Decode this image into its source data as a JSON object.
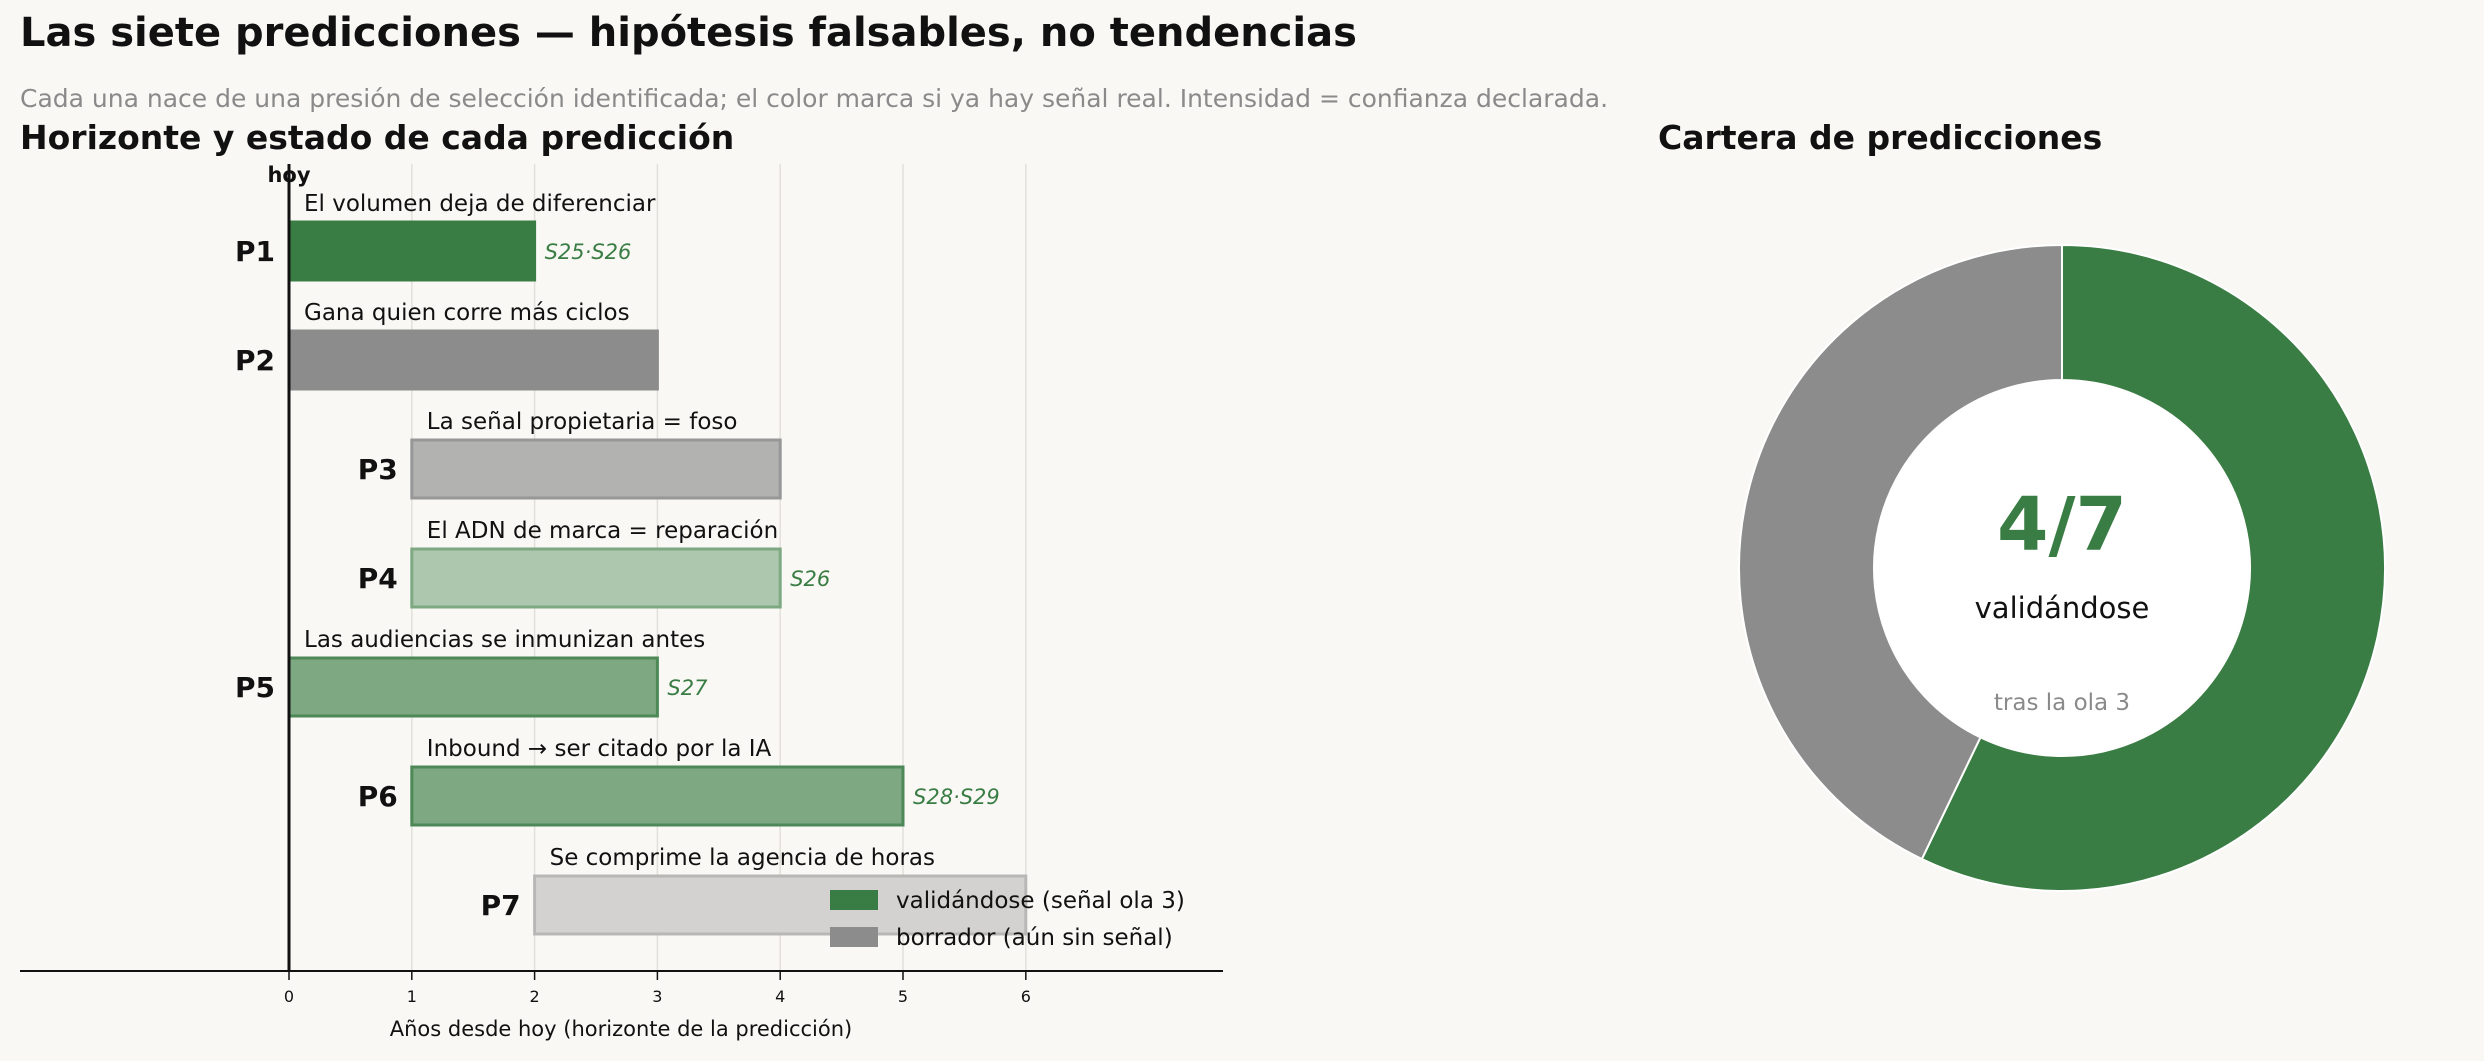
{
  "header": {
    "title": "Las siete predicciones — hipótesis falsables, no tendencias",
    "subtitle": "Cada una nace de una presión de selección identificada; el color marca si ya hay señal real. Intensidad = confianza declarada."
  },
  "colors": {
    "validating": "#3a7d44",
    "draft": "#8c8c8c",
    "axis": "#111111",
    "grid": "#e2e0da",
    "muted": "#8a8a8a"
  },
  "chart_data": [
    {
      "type": "bar",
      "orientation": "horizontal",
      "title": "Horizonte y estado de cada predicción",
      "xlabel": "Años desde hoy (horizonte de la predicción)",
      "xlim": [
        -2.2,
        7.6
      ],
      "xticks": [
        0,
        1,
        2,
        3,
        4,
        5,
        6
      ],
      "grid": true,
      "today_marker": {
        "x": 0,
        "label": "hoy"
      },
      "legend": {
        "placement": "lower-right",
        "entries": [
          {
            "label": "validándose (señal ola 3)",
            "status": "validating"
          },
          {
            "label": "borrador (aún sin señal)",
            "status": "draft"
          }
        ]
      },
      "predictions": [
        {
          "id": "P1",
          "label": "El volumen deja de diferenciar",
          "start": 0,
          "end": 2,
          "status": "validating",
          "confidence": 1.0,
          "signal": "S25·S26"
        },
        {
          "id": "P2",
          "label": "Gana quien corre más ciclos",
          "start": 0,
          "end": 3,
          "status": "draft",
          "confidence": 1.0,
          "signal": ""
        },
        {
          "id": "P3",
          "label": "La señal propietaria = foso",
          "start": 1,
          "end": 4,
          "status": "draft",
          "confidence": 0.65,
          "signal": ""
        },
        {
          "id": "P4",
          "label": "El ADN de marca = reparación",
          "start": 1,
          "end": 4,
          "status": "validating",
          "confidence": 0.4,
          "signal": "S26"
        },
        {
          "id": "P5",
          "label": "Las audiencias se inmunizan antes",
          "start": 0,
          "end": 3,
          "status": "validating",
          "confidence": 0.65,
          "signal": "S27"
        },
        {
          "id": "P6",
          "label": "Inbound → ser citado por la IA",
          "start": 1,
          "end": 5,
          "status": "validating",
          "confidence": 0.65,
          "signal": "S28·S29"
        },
        {
          "id": "P7",
          "label": "Se comprime la agencia de horas",
          "start": 2,
          "end": 6,
          "status": "draft",
          "confidence": 0.35,
          "signal": ""
        }
      ]
    },
    {
      "type": "pie",
      "style": "donut",
      "title": "Cartera de predicciones",
      "slices": [
        {
          "status": "validating",
          "value": 4
        },
        {
          "status": "draft",
          "value": 3
        }
      ],
      "center": {
        "value": "4/7",
        "label": "validándose",
        "note": "tras la ola 3"
      }
    }
  ]
}
